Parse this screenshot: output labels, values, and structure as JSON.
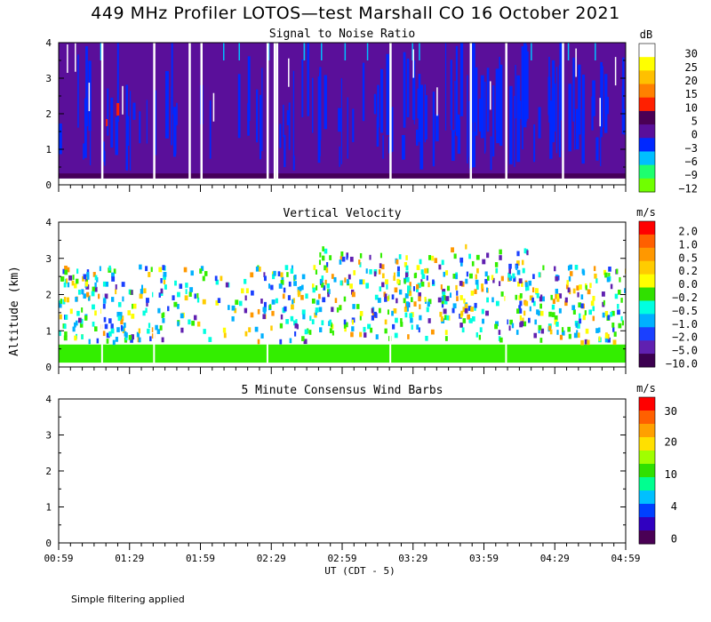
{
  "figure": {
    "title": "449 MHz Profiler LOTOS—test Marshall CO 16 October 2021",
    "ylabel": "Altitude (km)",
    "xlabel": "UT  (CDT - 5)",
    "footnote": "Simple filtering applied",
    "time_ticks": [
      "00:59",
      "01:29",
      "01:59",
      "02:29",
      "02:59",
      "03:29",
      "03:59",
      "04:29",
      "04:59"
    ],
    "altitude_ticks": [
      "0",
      "1",
      "2",
      "3",
      "4"
    ]
  },
  "chart_data": [
    {
      "type": "heatmap",
      "title": "Signal to Noise Ratio",
      "units": "dB",
      "x_range_minutes": [
        0,
        240
      ],
      "ylim": [
        0,
        4
      ],
      "colorbar": {
        "labels": [
          "30",
          "25",
          "20",
          "15",
          "10",
          "5",
          "0",
          "−3",
          "−6",
          "−9",
          "−12"
        ],
        "colors": [
          "#ffffff",
          "#ffff00",
          "#ffc000",
          "#ff8000",
          "#ff2000",
          "#4a0055",
          "#5a0f9a",
          "#0028ff",
          "#00bfff",
          "#1eff6e",
          "#70ff00"
        ]
      },
      "data_description": "Mostly purple (0 dB) with blue (−3 dB) patches from 0.3 to 4 km; isolated red (10 dB) near 2.2 km at ~01:19; white dropout stripes at several times",
      "dropouts_minutes": [
        18,
        40,
        55,
        60,
        88,
        91,
        92,
        140,
        174,
        189,
        213
      ]
    },
    {
      "type": "heatmap",
      "title": "Vertical Velocity",
      "units": "m/s",
      "x_range_minutes": [
        0,
        240
      ],
      "ylim": [
        0,
        4
      ],
      "colorbar": {
        "labels": [
          "2.0",
          "1.0",
          "0.5",
          "0.2",
          "0.0",
          "−0.2",
          "−0.5",
          "−1.0",
          "−2.0",
          "−5.0",
          "−10.0"
        ],
        "colors": [
          "#ff0000",
          "#ff6000",
          "#ff9800",
          "#ffcc00",
          "#ffff00",
          "#30e000",
          "#00ffe0",
          "#00b0ff",
          "#1a40ff",
          "#6020b0",
          "#3c0050"
        ]
      },
      "data_description": "Green (−0.2 m/s) layer 0.1–0.6 km throughout; scattered cyan/blue/yellow echoes from 0.6 to 3.3 km"
    },
    {
      "type": "heatmap",
      "title": "5 Minute Consensus Wind Barbs",
      "units": "m/s",
      "x_range_minutes": [
        0,
        240
      ],
      "ylim": [
        0,
        4
      ],
      "colorbar": {
        "labels": [
          "30",
          "20",
          "10",
          "4",
          "0"
        ],
        "colors": [
          "#ff0000",
          "#ff6000",
          "#ffa000",
          "#ffe000",
          "#a0ff00",
          "#30e000",
          "#00ff90",
          "#00c0ff",
          "#0040ff",
          "#3000c0",
          "#4a0055"
        ]
      },
      "data_description": "No wind barbs plotted"
    }
  ]
}
